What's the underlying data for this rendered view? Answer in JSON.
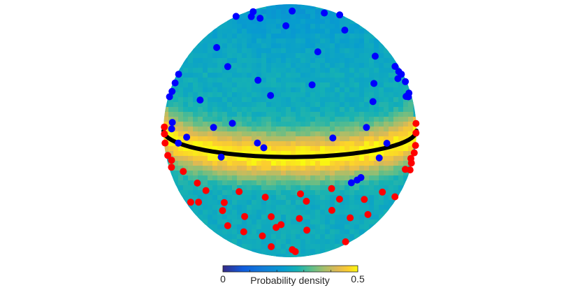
{
  "chart_data": {
    "type": "scatter",
    "chart_kind": "sphere-density-map",
    "colorbar": {
      "label": "Probability density",
      "min_label": "0",
      "max_label": "0.5",
      "range": [
        0,
        0.5
      ],
      "colormap": "parula",
      "placement": "bottom"
    },
    "view_tilt_deg": 12,
    "boundary_circle_color": "#000000",
    "density_model": {
      "background_level": 0.26,
      "band_peak_level": 0.5,
      "band_center_latitude_deg": 0,
      "band_halfwidth_deg": 11
    },
    "series": [
      {
        "name": "",
        "color": "#0000ff",
        "region": "upper",
        "points": [
          {
            "lon": -95,
            "lat": 73
          },
          {
            "lon": -70,
            "lat": 71
          },
          {
            "lon": -50,
            "lat": 72
          },
          {
            "lon": 8,
            "lat": 83
          },
          {
            "lon": 80,
            "lat": 74
          },
          {
            "lon": 105,
            "lat": 66
          },
          {
            "lon": -110,
            "lat": 63
          },
          {
            "lon": -5,
            "lat": 68
          },
          {
            "lon": 60,
            "lat": 60
          },
          {
            "lon": -60,
            "lat": 48
          },
          {
            "lon": 20,
            "lat": 50
          },
          {
            "lon": 65,
            "lat": 42
          },
          {
            "lon": -40,
            "lat": 40
          },
          {
            "lon": -18,
            "lat": 35
          },
          {
            "lon": 12,
            "lat": 33
          },
          {
            "lon": 50,
            "lat": 30
          },
          {
            "lon": -10,
            "lat": 28
          },
          {
            "lon": 45,
            "lat": 22
          },
          {
            "lon": -50,
            "lat": 22
          },
          {
            "lon": -28,
            "lat": 14
          },
          {
            "lon": -38,
            "lat": 11
          },
          {
            "lon": 38,
            "lat": 11
          },
          {
            "lon": 20,
            "lat": 8
          },
          {
            "lon": -15,
            "lat": 6
          },
          {
            "lon": -12,
            "lat": 4
          },
          {
            "lon": 50,
            "lat": 2
          },
          {
            "lon": -55,
            "lat": 4
          },
          {
            "lon": -70,
            "lat": 5
          },
          {
            "lon": -62,
            "lat": 0
          },
          {
            "lon": -33,
            "lat": -2
          },
          {
            "lon": 45,
            "lat": -4
          },
          {
            "lon": 82,
            "lat": 33
          },
          {
            "lon": 83,
            "lat": 30
          },
          {
            "lon": 87,
            "lat": 24
          },
          {
            "lon": 84,
            "lat": 19
          },
          {
            "lon": 80,
            "lat": 18
          },
          {
            "lon": 76,
            "lat": 19
          },
          {
            "lon": 86,
            "lat": 28
          },
          {
            "lon": 75,
            "lat": 28
          },
          {
            "lon": -86,
            "lat": 28
          },
          {
            "lon": -84,
            "lat": 24
          },
          {
            "lon": -83,
            "lat": 20
          },
          {
            "lon": -85,
            "lat": 17
          },
          {
            "lon": -70,
            "lat": 8
          },
          {
            "lon": 35,
            "lat": -12
          },
          {
            "lon": 33,
            "lat": -13
          },
          {
            "lon": 30,
            "lat": -14
          }
        ]
      },
      {
        "name": "",
        "color": "#ff0000",
        "region": "lower",
        "points": [
          {
            "lon": -84,
            "lat": 3
          },
          {
            "lon": -83,
            "lat": 0
          },
          {
            "lon": -82,
            "lat": -4
          },
          {
            "lon": -78,
            "lat": -9
          },
          {
            "lon": -72,
            "lat": -10
          },
          {
            "lon": -60,
            "lat": -13
          },
          {
            "lon": -75,
            "lat": -14
          },
          {
            "lon": -50,
            "lat": -17
          },
          {
            "lon": -45,
            "lat": -20
          },
          {
            "lon": -35,
            "lat": -25
          },
          {
            "lon": -25,
            "lat": -18
          },
          {
            "lon": -12,
            "lat": -20
          },
          {
            "lon": 5,
            "lat": -18
          },
          {
            "lon": 20,
            "lat": -16
          },
          {
            "lon": 8,
            "lat": -22
          },
          {
            "lon": 25,
            "lat": -22
          },
          {
            "lon": 40,
            "lat": -24
          },
          {
            "lon": 52,
            "lat": -22
          },
          {
            "lon": 70,
            "lat": -14
          },
          {
            "lon": 76,
            "lat": -10
          },
          {
            "lon": 80,
            "lat": -13
          },
          {
            "lon": 84,
            "lat": -9
          },
          {
            "lon": 86,
            "lat": -6
          },
          {
            "lon": 85,
            "lat": 0
          },
          {
            "lon": 87,
            "lat": 4
          },
          {
            "lon": 83,
            "lat": -17
          },
          {
            "lon": -65,
            "lat": -30
          },
          {
            "lon": -55,
            "lat": -28
          },
          {
            "lon": -38,
            "lat": -30
          },
          {
            "lon": -25,
            "lat": -32
          },
          {
            "lon": -10,
            "lat": -31
          },
          {
            "lon": 5,
            "lat": -32
          },
          {
            "lon": 22,
            "lat": -28
          },
          {
            "lon": 35,
            "lat": -34
          },
          {
            "lon": 48,
            "lat": -34
          },
          {
            "lon": -40,
            "lat": -40
          },
          {
            "lon": -30,
            "lat": -43
          },
          {
            "lon": -18,
            "lat": -45
          },
          {
            "lon": -5,
            "lat": -36
          },
          {
            "lon": -8,
            "lat": -38
          },
          {
            "lon": 10,
            "lat": -40
          },
          {
            "lon": -15,
            "lat": -55
          },
          {
            "lon": 2,
            "lat": -58
          },
          {
            "lon": 5,
            "lat": -61
          },
          {
            "lon": 50,
            "lat": -55
          },
          {
            "lon": 70,
            "lat": -28
          },
          {
            "lon": -85,
            "lat": -24
          }
        ]
      }
    ]
  }
}
